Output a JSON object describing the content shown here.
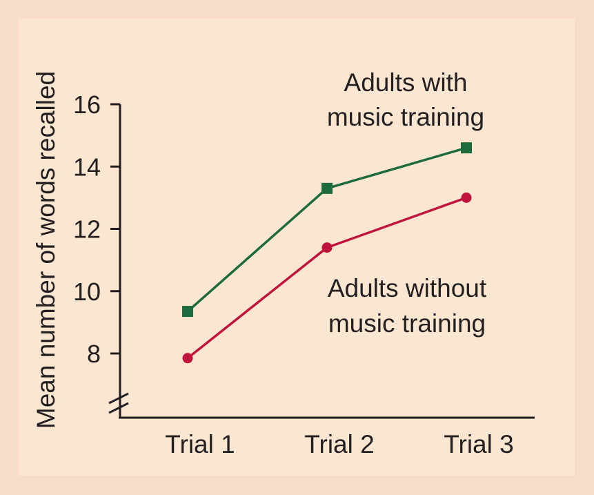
{
  "chart_data": {
    "type": "line",
    "ylabel": "Mean number of words recalled",
    "xlabel": "",
    "categories": [
      "Trial 1",
      "Trial 2",
      "Trial 3"
    ],
    "yticks": [
      8,
      10,
      12,
      14,
      16
    ],
    "axis_break": true,
    "grid": false,
    "series": [
      {
        "name": "Adults with music training",
        "label_lines": [
          "Adults with",
          "music training"
        ],
        "values": [
          9.35,
          13.3,
          14.6
        ],
        "color": "#1d6b3c",
        "marker": "square"
      },
      {
        "name": "Adults without music training",
        "label_lines": [
          "Adults without",
          "music training"
        ],
        "values": [
          7.85,
          11.4,
          13.0
        ],
        "color": "#c0143c",
        "marker": "circle"
      }
    ]
  }
}
